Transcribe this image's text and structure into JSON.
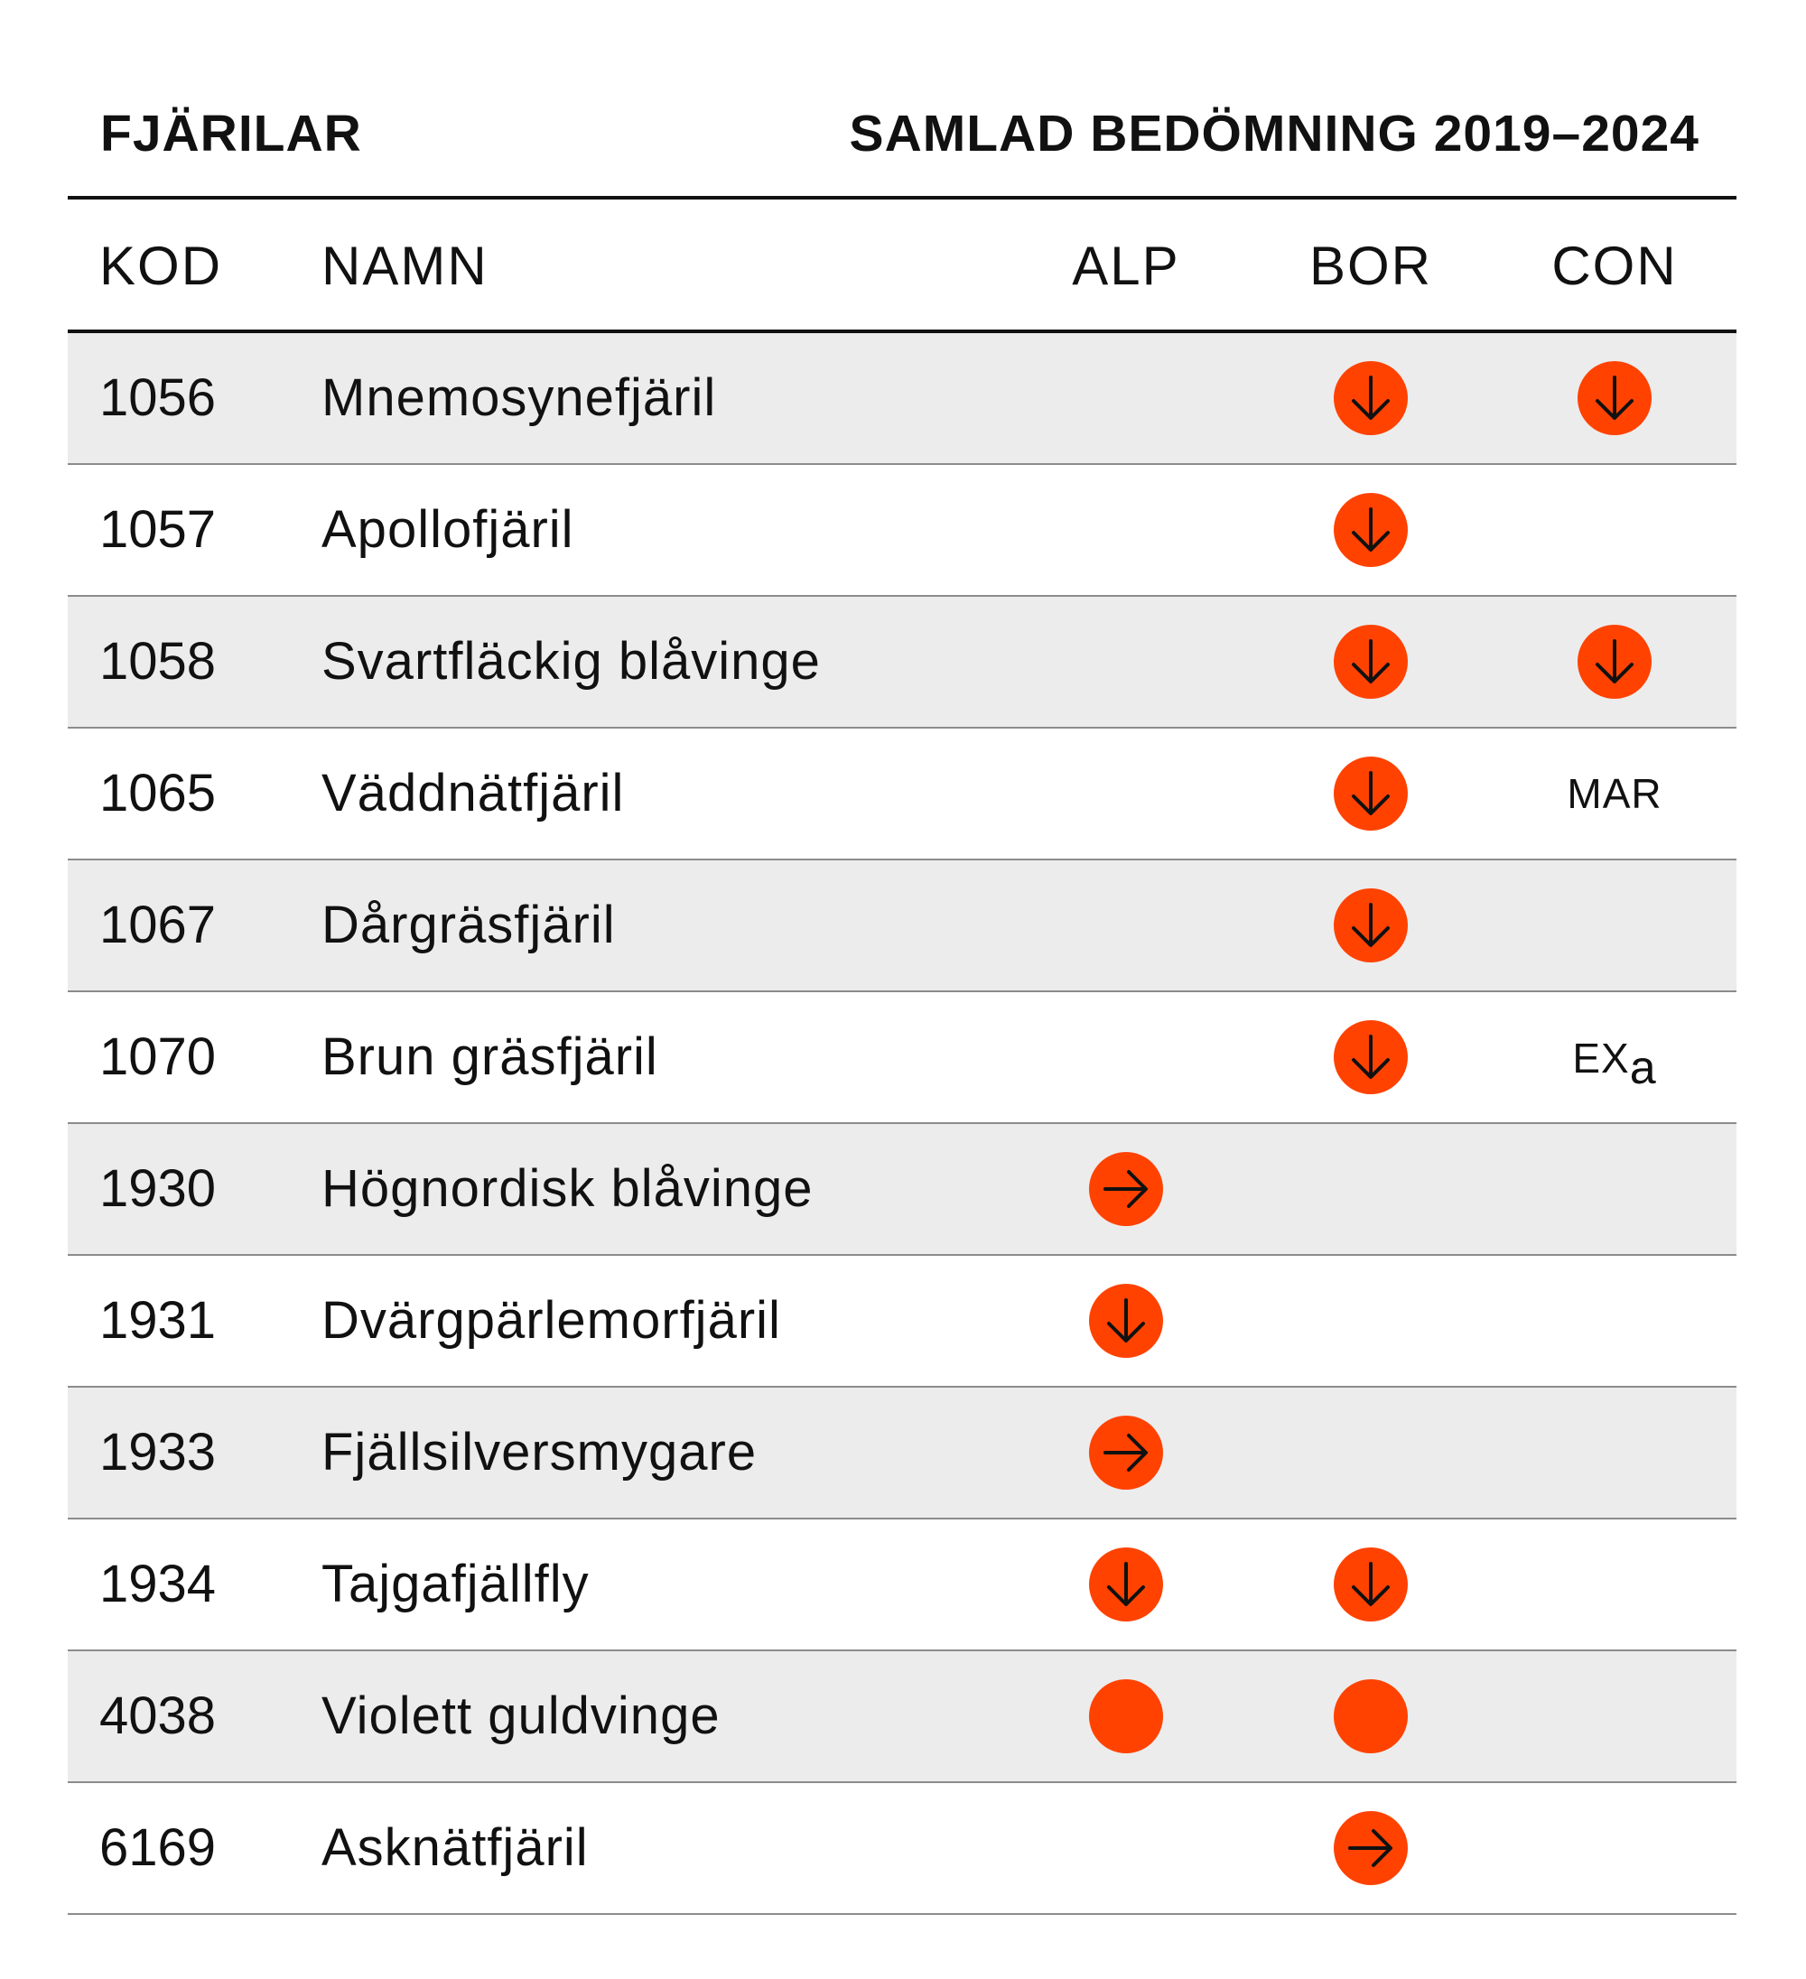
{
  "title": "FJÄRILAR",
  "subtitle": "SAMLAD BEDÖMNING 2019–2024",
  "columns": {
    "kod": "KOD",
    "namn": "NAMN",
    "alp": "ALP",
    "bor": "BOR",
    "con": "CON"
  },
  "colors": {
    "marker": "#ff4200",
    "row_shade": "#ececec",
    "text": "#111111"
  },
  "rows": [
    {
      "kod": "1056",
      "namn": "Mnemosynefjäril",
      "alp": null,
      "bor": "arrow-down-icon",
      "con": "arrow-down-icon"
    },
    {
      "kod": "1057",
      "namn": "Apollofjäril",
      "alp": null,
      "bor": "arrow-down-icon",
      "con": null
    },
    {
      "kod": "1058",
      "namn": "Svartfläckig blåvinge",
      "alp": null,
      "bor": "arrow-down-icon",
      "con": "arrow-down-icon"
    },
    {
      "kod": "1065",
      "namn": "Väddnätfjäril",
      "alp": null,
      "bor": "arrow-down-icon",
      "con_text": "MAR"
    },
    {
      "kod": "1067",
      "namn": "Dårgräsfjäril",
      "alp": null,
      "bor": "arrow-down-icon",
      "con": null
    },
    {
      "kod": "1070",
      "namn": "Brun gräsfjäril",
      "alp": null,
      "bor": "arrow-down-icon",
      "con_text": "EX",
      "con_sub": "a"
    },
    {
      "kod": "1930",
      "namn": "Högnordisk blåvinge",
      "alp": "arrow-right-icon",
      "bor": null,
      "con": null
    },
    {
      "kod": "1931",
      "namn": "Dvärgpärlemorfjäril",
      "alp": "arrow-down-icon",
      "bor": null,
      "con": null
    },
    {
      "kod": "1933",
      "namn": "Fjällsilversmygare",
      "alp": "arrow-right-icon",
      "bor": null,
      "con": null
    },
    {
      "kod": "1934",
      "namn": "Tajgafjällfly",
      "alp": "arrow-down-icon",
      "bor": "arrow-down-icon",
      "con": null
    },
    {
      "kod": "4038",
      "namn": "Violett guldvinge",
      "alp": "dot-icon",
      "bor": "dot-icon",
      "con": null
    },
    {
      "kod": "6169",
      "namn": "Asknätfjäril",
      "alp": null,
      "bor": "arrow-right-icon",
      "con": null
    }
  ]
}
